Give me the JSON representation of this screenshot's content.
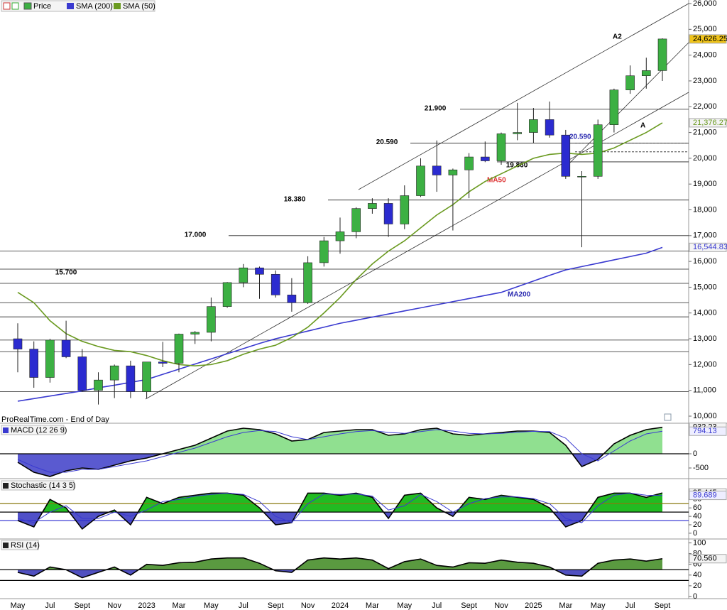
{
  "chart_data": [
    {
      "type": "candlestick",
      "source": "ProRealTime.com - End of Day",
      "categories": [
        "May",
        null,
        "Jul",
        null,
        "Sept",
        null,
        "Nov",
        null,
        "2023",
        null,
        "Mar",
        null,
        "May",
        null,
        "Jul",
        null,
        "Sept",
        null,
        "Nov",
        null,
        "2024",
        null,
        "Mar",
        null,
        "May",
        null,
        "Jul",
        null,
        "Sept",
        null,
        "Nov",
        null,
        "2025",
        null,
        "Mar",
        null,
        "May",
        null,
        "Jul",
        null,
        "Sept"
      ],
      "price": {
        "name": "Price",
        "up_color": "#3cb043",
        "down_color": "#2b2bd0",
        "last_label": "24,626.25",
        "open": [
          13000,
          12600,
          11500,
          12950,
          12300,
          11000,
          11400,
          11950,
          10950,
          12100,
          12050,
          13180,
          13250,
          14250,
          15180,
          15750,
          15500,
          14700,
          14400,
          15950,
          16800,
          17150,
          18050,
          18250,
          17450,
          18550,
          19700,
          19350,
          19550,
          20050,
          19900,
          20950,
          21000,
          21500,
          20900,
          19300,
          19300,
          21300,
          22650,
          23200,
          23400
        ],
        "high": [
          13600,
          12900,
          13000,
          13700,
          12600,
          11700,
          12000,
          12150,
          12100,
          12880,
          13200,
          13300,
          14600,
          15200,
          15900,
          15800,
          15650,
          15350,
          16200,
          16950,
          17700,
          18100,
          18450,
          18450,
          18950,
          20000,
          20690,
          19600,
          20200,
          20650,
          21000,
          22150,
          21950,
          22200,
          21100,
          19500,
          21500,
          22700,
          23600,
          23900,
          24650
        ],
        "low": [
          11700,
          11100,
          11300,
          12250,
          10950,
          10450,
          10700,
          10700,
          10700,
          11900,
          11700,
          12800,
          12900,
          14200,
          15000,
          14550,
          14600,
          14050,
          14350,
          15800,
          16300,
          16900,
          17850,
          16950,
          17250,
          18500,
          18700,
          17200,
          18450,
          19850,
          19750,
          20700,
          20600,
          20800,
          19200,
          16550,
          19200,
          21000,
          22500,
          22700,
          23000
        ],
        "close": [
          12600,
          11500,
          12950,
          12300,
          11000,
          11400,
          11950,
          10950,
          12100,
          12050,
          13180,
          13250,
          14250,
          15180,
          15750,
          15500,
          14700,
          14400,
          15950,
          16800,
          17150,
          18050,
          18250,
          17450,
          18550,
          19700,
          19350,
          19550,
          20050,
          19900,
          20950,
          21000,
          21500,
          20900,
          19300,
          19300,
          21300,
          22650,
          23200,
          23400,
          24626.25
        ]
      },
      "series": [
        {
          "name": "SMA (200)",
          "color": "#3a3ad0",
          "last_label": "16,544.83",
          "values": [
            10580,
            10680,
            10780,
            10880,
            10980,
            11100,
            11200,
            11310,
            11420,
            11620,
            11820,
            12020,
            12220,
            12420,
            12620,
            12820,
            13000,
            13150,
            13300,
            13450,
            13600,
            13720,
            13840,
            13960,
            14080,
            14200,
            14320,
            14440,
            14560,
            14680,
            14800,
            15020,
            15240,
            15460,
            15670,
            15800,
            15930,
            16060,
            16190,
            16320,
            16544.83
          ]
        },
        {
          "name": "SMA (50)",
          "color": "#6a9a20",
          "last_label": "21,376.27",
          "values": [
            14800,
            14400,
            13700,
            13200,
            12900,
            12700,
            12550,
            12500,
            12350,
            12150,
            12000,
            11950,
            12000,
            12150,
            12400,
            12600,
            12750,
            13050,
            13450,
            14000,
            14600,
            15300,
            15900,
            16400,
            16800,
            17300,
            17800,
            18200,
            18700,
            19100,
            19400,
            19700,
            20000,
            20150,
            20200,
            20150,
            20200,
            20400,
            20700,
            21000,
            21376.27
          ]
        }
      ],
      "ylim": [
        10000,
        26000
      ],
      "yticks": [
        {
          "value": 26000,
          "label": "26,000"
        },
        {
          "value": 25000,
          "label": "25,000"
        },
        {
          "value": 24000,
          "label": "24,000"
        },
        {
          "value": 23000,
          "label": "23,000"
        },
        {
          "value": 22000,
          "label": "22,000"
        },
        {
          "value": 21000,
          "label": "21,000"
        },
        {
          "value": 20000,
          "label": "20,000"
        },
        {
          "value": 19000,
          "label": "19,000"
        },
        {
          "value": 18000,
          "label": "18,000"
        },
        {
          "value": 17000,
          "label": "17,000"
        },
        {
          "value": 16000,
          "label": "16,000"
        },
        {
          "value": 15000,
          "label": "15,000"
        },
        {
          "value": 14000,
          "label": "14,000"
        },
        {
          "value": 13000,
          "label": "13,000"
        },
        {
          "value": 12000,
          "label": "12,000"
        },
        {
          "value": 11000,
          "label": "11,000"
        },
        {
          "value": 10000,
          "label": "10,000"
        }
      ],
      "levels": [
        {
          "value": 21900,
          "label": "21.900"
        },
        {
          "value": 20590,
          "label": "20.590"
        },
        {
          "value": 18380,
          "label": "18.380"
        },
        {
          "value": 17000,
          "label": "17.000"
        },
        {
          "value": 15700,
          "label": "15.700"
        },
        {
          "value": 19860,
          "label": "19.860"
        }
      ],
      "hlines": [
        16400,
        15150,
        14400,
        13850,
        12950,
        12500,
        10950
      ],
      "marker": {
        "value": 20590,
        "label": "20.590"
      },
      "dashed_levels": [
        20590,
        20250
      ],
      "annotations": {
        "a2": "A2",
        "a": "A",
        "ma50": "MA50",
        "ma200": "MA200"
      }
    },
    {
      "type": "macd",
      "title": "MACD (12 26 9)",
      "ylim": [
        -850,
        1050
      ],
      "yticks": [
        0,
        -500
      ],
      "baseline": 0,
      "series": [
        {
          "color": "#000000",
          "fill_up": "#90e090",
          "fill_down": "#5a5ad0",
          "values": [
            -300,
            -650,
            -800,
            -600,
            -500,
            -550,
            -400,
            -250,
            -150,
            0,
            150,
            300,
            550,
            800,
            900,
            850,
            700,
            450,
            500,
            750,
            800,
            850,
            850,
            650,
            700,
            850,
            900,
            700,
            650,
            700,
            750,
            800,
            800,
            750,
            300,
            -450,
            -200,
            350,
            650,
            850,
            932.23
          ]
        },
        {
          "color": "#3a3ad0",
          "values": [
            -200,
            -450,
            -650,
            -650,
            -550,
            -550,
            -450,
            -350,
            -250,
            -100,
            50,
            200,
            400,
            600,
            750,
            820,
            780,
            600,
            500,
            600,
            700,
            780,
            820,
            750,
            720,
            780,
            850,
            800,
            720,
            700,
            720,
            760,
            790,
            780,
            550,
            0,
            -250,
            100,
            450,
            700,
            794.13
          ]
        }
      ]
    },
    {
      "type": "oscillator",
      "title": "Stochastic (14 3 5)",
      "ylim": [
        -12,
        126
      ],
      "yticks": [
        0,
        20,
        40,
        60,
        80
      ],
      "baseline": 50,
      "hlines": [
        {
          "value": 70,
          "color": "#8a7a10"
        },
        {
          "value": 50,
          "color": "#000000"
        },
        {
          "value": 30,
          "color": "#2a2ad0"
        }
      ],
      "series": [
        {
          "color": "#000000",
          "fill_up": "#22bb22",
          "fill_down": "#5050c8",
          "values": [
            30,
            15,
            80,
            60,
            10,
            40,
            55,
            20,
            85,
            70,
            85,
            90,
            95,
            95,
            90,
            60,
            20,
            25,
            95,
            95,
            90,
            95,
            85,
            35,
            90,
            95,
            60,
            40,
            85,
            80,
            90,
            85,
            80,
            60,
            15,
            30,
            85,
            95,
            95,
            85,
            95.445
          ]
        },
        {
          "color": "#3a3ad0",
          "values": [
            35,
            25,
            50,
            65,
            35,
            35,
            50,
            40,
            55,
            75,
            80,
            88,
            92,
            95,
            92,
            75,
            40,
            25,
            70,
            93,
            92,
            93,
            88,
            55,
            65,
            92,
            75,
            50,
            70,
            82,
            86,
            86,
            82,
            70,
            35,
            25,
            65,
            90,
            95,
            90,
            89.689
          ]
        }
      ]
    },
    {
      "type": "oscillator",
      "title": "RSI (14)",
      "ylim": [
        -4,
        106
      ],
      "yticks": [
        0,
        20,
        40,
        60,
        80,
        100
      ],
      "baseline": 50,
      "hlines": [
        {
          "value": 50,
          "color": "#000000"
        },
        {
          "value": 30,
          "color": "#000000"
        }
      ],
      "series": [
        {
          "color": "#000000",
          "fill_up": "#5a9a40",
          "fill_down": "#5050c0",
          "last_label": "70.560",
          "values": [
            45,
            38,
            55,
            50,
            35,
            45,
            55,
            40,
            60,
            58,
            63,
            64,
            70,
            72,
            72,
            62,
            48,
            45,
            68,
            72,
            70,
            72,
            68,
            52,
            65,
            70,
            58,
            55,
            63,
            62,
            68,
            64,
            62,
            55,
            40,
            38,
            62,
            68,
            70,
            66,
            70.56
          ]
        }
      ]
    }
  ]
}
